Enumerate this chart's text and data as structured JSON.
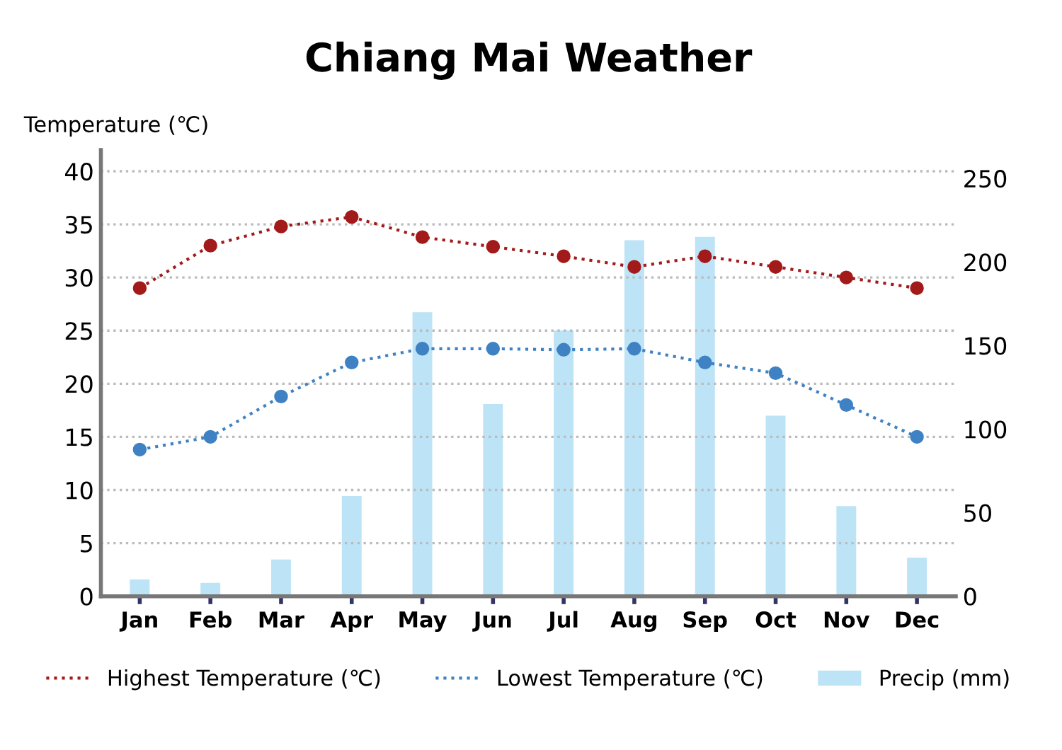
{
  "chart_data": {
    "type": "line",
    "title": "Chiang Mai Weather",
    "ylabel": "Temperature (℃)",
    "categories": [
      "Jan",
      "Feb",
      "Mar",
      "Apr",
      "May",
      "Jun",
      "Jul",
      "Aug",
      "Sep",
      "Oct",
      "Nov",
      "Dec"
    ],
    "series": [
      {
        "name": "Highest Temperature (℃)",
        "color": "#a31a1a",
        "values": [
          29,
          33,
          34.8,
          35.7,
          33.8,
          32.9,
          32,
          31,
          32,
          31,
          30,
          29
        ]
      },
      {
        "name": "Lowest Temperature (℃)",
        "color": "#3f82c4",
        "values": [
          13.8,
          15,
          18.8,
          22,
          23.3,
          23.3,
          23.2,
          23.3,
          22,
          21,
          18,
          15
        ]
      },
      {
        "name": "Precip (mm)",
        "type": "bar",
        "axis": "y2",
        "color": "#bde3f6",
        "values": [
          10,
          8,
          22,
          60,
          170,
          115,
          159,
          213,
          215,
          108,
          54,
          23
        ]
      }
    ],
    "ylim": [
      0,
      42
    ],
    "yticks": [
      0,
      5,
      10,
      15,
      20,
      25,
      30,
      35,
      40
    ],
    "y2lim": [
      0,
      267
    ],
    "y2ticks": [
      0,
      50,
      100,
      150,
      200,
      250
    ],
    "grid": "y",
    "legend": "bottom",
    "marker": "circle",
    "line_style": "dotted"
  }
}
